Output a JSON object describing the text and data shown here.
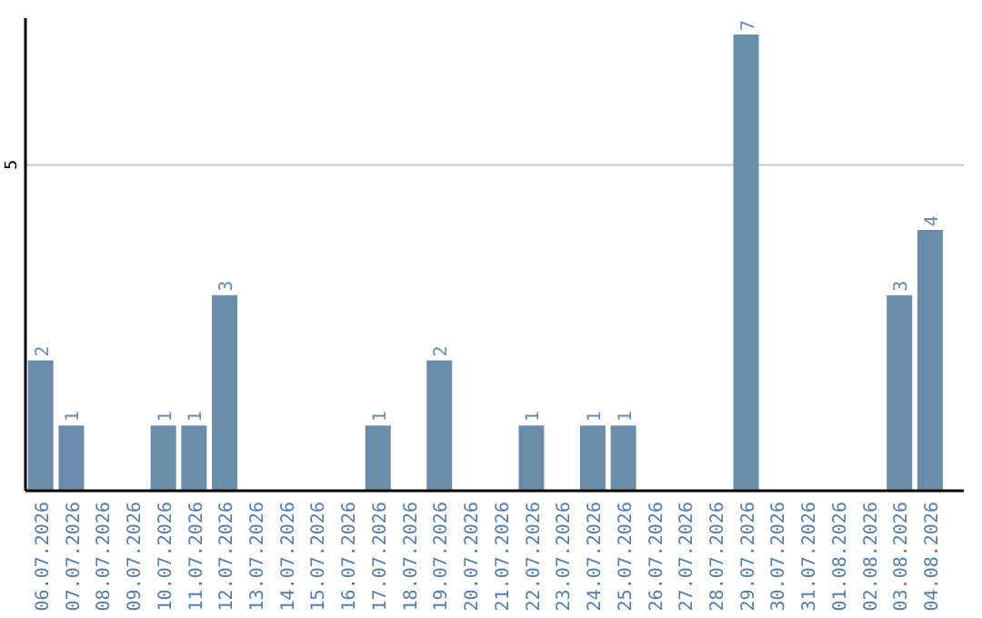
{
  "chart_data": {
    "type": "bar",
    "categories": [
      "06.07.2026",
      "07.07.2026",
      "08.07.2026",
      "09.07.2026",
      "10.07.2026",
      "11.07.2026",
      "12.07.2026",
      "13.07.2026",
      "14.07.2026",
      "15.07.2026",
      "16.07.2026",
      "17.07.2026",
      "18.07.2026",
      "19.07.2026",
      "20.07.2026",
      "21.07.2026",
      "22.07.2026",
      "23.07.2026",
      "24.07.2026",
      "25.07.2026",
      "26.07.2026",
      "27.07.2026",
      "28.07.2026",
      "29.07.2026",
      "30.07.2026",
      "31.07.2026",
      "01.08.2026",
      "02.08.2026",
      "03.08.2026",
      "04.08.2026"
    ],
    "values": [
      2,
      1,
      0,
      0,
      1,
      1,
      3,
      0,
      0,
      0,
      0,
      1,
      0,
      2,
      0,
      0,
      1,
      0,
      1,
      1,
      0,
      0,
      0,
      7,
      0,
      0,
      0,
      0,
      3,
      4
    ],
    "value_labels": [
      "2",
      "1",
      null,
      null,
      "1",
      "1",
      "3",
      null,
      null,
      null,
      null,
      "1",
      null,
      "2",
      null,
      null,
      "1",
      null,
      "1",
      "1",
      null,
      null,
      null,
      "7",
      null,
      null,
      null,
      null,
      "3",
      "4"
    ],
    "color": "#6b8cab",
    "ylim": [
      0,
      7.25
    ],
    "yticks": [
      5
    ],
    "grid": "y"
  }
}
